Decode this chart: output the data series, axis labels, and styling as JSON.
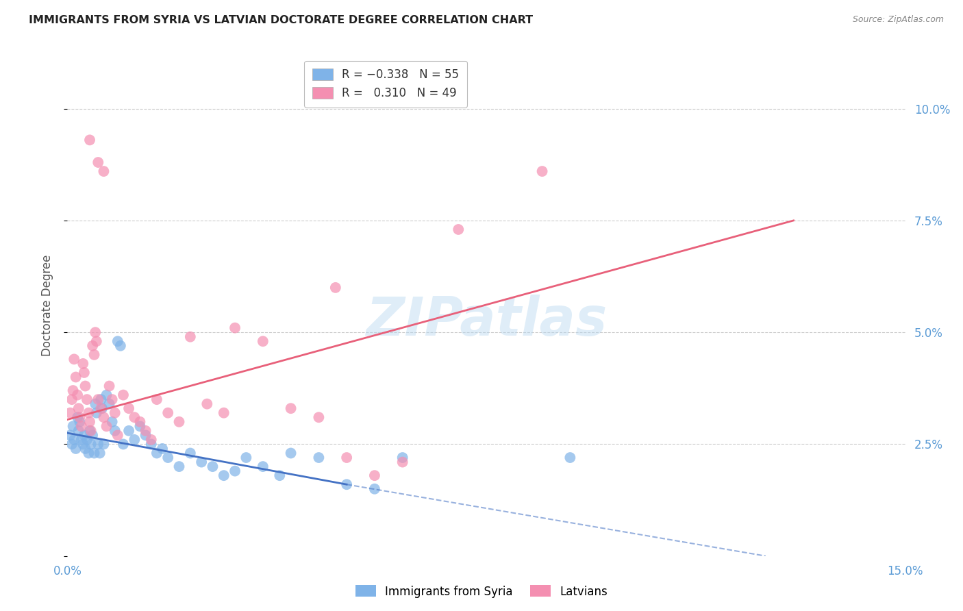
{
  "title": "IMMIGRANTS FROM SYRIA VS LATVIAN DOCTORATE DEGREE CORRELATION CHART",
  "source": "Source: ZipAtlas.com",
  "ylabel": "Doctorate Degree",
  "watermark": "ZIPatlas",
  "xlim": [
    0.0,
    15.0
  ],
  "ylim": [
    0.0,
    11.2
  ],
  "yticks": [
    0.0,
    2.5,
    5.0,
    7.5,
    10.0
  ],
  "ytick_labels_right": [
    "",
    "2.5%",
    "5.0%",
    "7.5%",
    "10.0%"
  ],
  "blue_points": [
    [
      0.05,
      2.7
    ],
    [
      0.08,
      2.5
    ],
    [
      0.1,
      2.9
    ],
    [
      0.12,
      2.6
    ],
    [
      0.15,
      2.4
    ],
    [
      0.18,
      3.1
    ],
    [
      0.2,
      2.8
    ],
    [
      0.22,
      3.0
    ],
    [
      0.25,
      2.6
    ],
    [
      0.28,
      2.5
    ],
    [
      0.3,
      2.7
    ],
    [
      0.32,
      2.4
    ],
    [
      0.35,
      2.6
    ],
    [
      0.38,
      2.3
    ],
    [
      0.4,
      2.8
    ],
    [
      0.42,
      2.5
    ],
    [
      0.45,
      2.7
    ],
    [
      0.48,
      2.3
    ],
    [
      0.5,
      3.4
    ],
    [
      0.52,
      3.2
    ],
    [
      0.55,
      2.5
    ],
    [
      0.58,
      2.3
    ],
    [
      0.6,
      3.5
    ],
    [
      0.62,
      3.3
    ],
    [
      0.65,
      2.5
    ],
    [
      0.7,
      3.6
    ],
    [
      0.75,
      3.4
    ],
    [
      0.8,
      3.0
    ],
    [
      0.85,
      2.8
    ],
    [
      0.9,
      4.8
    ],
    [
      0.95,
      4.7
    ],
    [
      1.0,
      2.5
    ],
    [
      1.1,
      2.8
    ],
    [
      1.2,
      2.6
    ],
    [
      1.3,
      2.9
    ],
    [
      1.4,
      2.7
    ],
    [
      1.5,
      2.5
    ],
    [
      1.6,
      2.3
    ],
    [
      1.7,
      2.4
    ],
    [
      1.8,
      2.2
    ],
    [
      2.0,
      2.0
    ],
    [
      2.2,
      2.3
    ],
    [
      2.4,
      2.1
    ],
    [
      2.6,
      2.0
    ],
    [
      2.8,
      1.8
    ],
    [
      3.0,
      1.9
    ],
    [
      3.2,
      2.2
    ],
    [
      3.5,
      2.0
    ],
    [
      3.8,
      1.8
    ],
    [
      4.0,
      2.3
    ],
    [
      4.5,
      2.2
    ],
    [
      5.0,
      1.6
    ],
    [
      5.5,
      1.5
    ],
    [
      6.0,
      2.2
    ],
    [
      9.0,
      2.2
    ]
  ],
  "pink_points": [
    [
      0.05,
      3.2
    ],
    [
      0.08,
      3.5
    ],
    [
      0.1,
      3.7
    ],
    [
      0.12,
      4.4
    ],
    [
      0.15,
      4.0
    ],
    [
      0.18,
      3.6
    ],
    [
      0.2,
      3.3
    ],
    [
      0.22,
      3.1
    ],
    [
      0.25,
      2.9
    ],
    [
      0.28,
      4.3
    ],
    [
      0.3,
      4.1
    ],
    [
      0.32,
      3.8
    ],
    [
      0.35,
      3.5
    ],
    [
      0.38,
      3.2
    ],
    [
      0.4,
      3.0
    ],
    [
      0.42,
      2.8
    ],
    [
      0.45,
      4.7
    ],
    [
      0.48,
      4.5
    ],
    [
      0.5,
      5.0
    ],
    [
      0.52,
      4.8
    ],
    [
      0.55,
      3.5
    ],
    [
      0.6,
      3.3
    ],
    [
      0.65,
      3.1
    ],
    [
      0.7,
      2.9
    ],
    [
      0.75,
      3.8
    ],
    [
      0.8,
      3.5
    ],
    [
      0.85,
      3.2
    ],
    [
      0.9,
      2.7
    ],
    [
      1.0,
      3.6
    ],
    [
      1.1,
      3.3
    ],
    [
      1.2,
      3.1
    ],
    [
      1.3,
      3.0
    ],
    [
      1.4,
      2.8
    ],
    [
      1.5,
      2.6
    ],
    [
      1.6,
      3.5
    ],
    [
      1.8,
      3.2
    ],
    [
      2.0,
      3.0
    ],
    [
      2.2,
      4.9
    ],
    [
      2.5,
      3.4
    ],
    [
      2.8,
      3.2
    ],
    [
      3.0,
      5.1
    ],
    [
      3.5,
      4.8
    ],
    [
      4.0,
      3.3
    ],
    [
      4.5,
      3.1
    ],
    [
      5.0,
      2.2
    ],
    [
      5.5,
      1.8
    ],
    [
      6.0,
      2.1
    ],
    [
      7.0,
      7.3
    ],
    [
      8.5,
      8.6
    ],
    [
      0.4,
      9.3
    ],
    [
      0.55,
      8.8
    ],
    [
      0.65,
      8.6
    ],
    [
      4.8,
      6.0
    ]
  ],
  "blue_line": {
    "x0": 0.0,
    "y0": 2.75,
    "x1_solid": 5.0,
    "y1_solid": 1.6,
    "x2_dashed": 12.5,
    "y2_dashed": 0.0
  },
  "pink_line": {
    "x0": 0.0,
    "y0": 3.05,
    "x1": 13.0,
    "y1": 7.5
  },
  "series_blue_color": "#7fb3e8",
  "series_blue_line_color": "#4472c4",
  "series_pink_color": "#f48fb1",
  "series_pink_line_color": "#e8607a",
  "background_color": "#ffffff",
  "grid_color": "#cccccc",
  "title_color": "#222222",
  "axis_tick_color": "#5b9bd5",
  "ylabel_color": "#555555"
}
